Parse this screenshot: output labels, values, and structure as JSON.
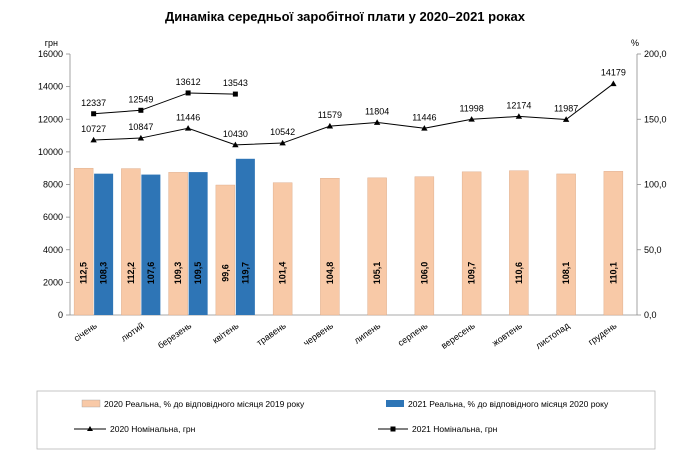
{
  "chart_data": {
    "type": "bar",
    "title": "Динаміка середньої заробітної плати у 2020–2021 роках",
    "left_unit": "грн",
    "right_unit": "%",
    "left_ylim": [
      0,
      16000
    ],
    "left_ticks": [
      "0",
      "2000",
      "4000",
      "6000",
      "8000",
      "10000",
      "12000",
      "14000",
      "16000"
    ],
    "right_ylim": [
      0,
      200
    ],
    "right_ticks": [
      "0,0",
      "50,0",
      "100,0",
      "150,0",
      "200,0"
    ],
    "categories": [
      "січень",
      "лютий",
      "березень",
      "квітень",
      "травень",
      "червень",
      "липень",
      "серпень",
      "вересень",
      "жовтень",
      "листопад",
      "грудень"
    ],
    "bar_series": [
      {
        "name": "2020 Реальна, % до відповідного місяця 2019 року",
        "color": "#F8C9A7",
        "values": [
          112.5,
          112.2,
          109.3,
          99.6,
          101.4,
          104.8,
          105.1,
          106.0,
          109.7,
          110.6,
          108.1,
          110.1
        ],
        "labels": [
          "112,5",
          "112,2",
          "109,3",
          "99,6",
          "101,4",
          "104,8",
          "105,1",
          "106,0",
          "109,7",
          "110,6",
          "108,1",
          "110,1"
        ]
      },
      {
        "name": "2021 Реальна, % до відповідного місяця 2020 року",
        "color": "#2E75B6",
        "values": [
          108.3,
          107.6,
          109.5,
          119.7
        ],
        "labels": [
          "108,3",
          "107,6",
          "109,5",
          "119,7"
        ]
      }
    ],
    "line_series": [
      {
        "name": "2020 Номінальна, грн",
        "marker": "triangle",
        "values": [
          10727,
          10847,
          11446,
          10430,
          10542,
          11579,
          11804,
          11446,
          11998,
          12174,
          11987,
          14179
        ],
        "labels": [
          "10727",
          "10847",
          "11446",
          "10430",
          "10542",
          "11579",
          "11804",
          "11446",
          "11998",
          "12174",
          "11987",
          "14179"
        ]
      },
      {
        "name": "2021 Номінальна, грн",
        "marker": "square",
        "values": [
          12337,
          12549,
          13612,
          13543
        ],
        "labels": [
          "12337",
          "12549",
          "13612",
          "13543"
        ]
      }
    ]
  }
}
